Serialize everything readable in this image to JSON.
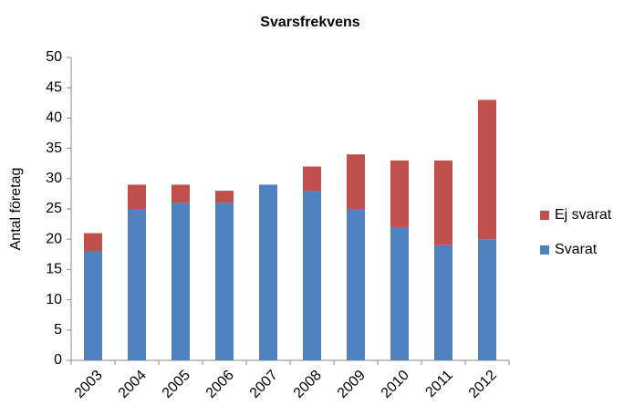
{
  "chart_data": {
    "type": "stacked_bar",
    "title": "Svarsfrekvens",
    "y_label": "Antal företag",
    "categories": [
      "2003",
      "2004",
      "2005",
      "2006",
      "2007",
      "2008",
      "2009",
      "2010",
      "2011",
      "2012"
    ],
    "series": [
      {
        "name": "Svarat",
        "color": "#4f81bd",
        "values": [
          18,
          25,
          26,
          26,
          29,
          28,
          25,
          22,
          19,
          20
        ]
      },
      {
        "name": "Ej svarat",
        "color": "#c0504d",
        "values": [
          3,
          4,
          3,
          2,
          0,
          4,
          9,
          11,
          14,
          23
        ]
      }
    ],
    "ylim": [
      0,
      50
    ],
    "yticks": [
      0,
      5,
      10,
      15,
      20,
      25,
      30,
      35,
      40,
      45,
      50
    ],
    "grid": false,
    "legend": "right"
  }
}
